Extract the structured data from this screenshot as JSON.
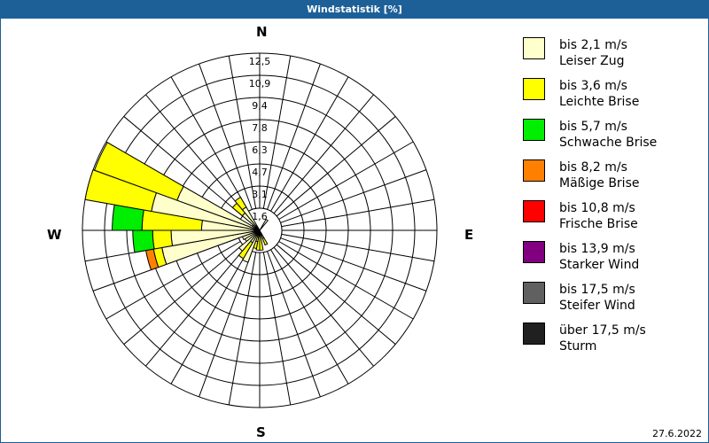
{
  "title": "Windstatistik [%]",
  "date": "27.6.2022",
  "compass": {
    "N": "N",
    "E": "E",
    "S": "S",
    "W": "W"
  },
  "legend": [
    {
      "range": "bis 2,1 m/s",
      "name": "Leiser Zug",
      "color": "#ffffcc"
    },
    {
      "range": "bis 3,6 m/s",
      "name": "Leichte Brise",
      "color": "#ffff00"
    },
    {
      "range": "bis 5,7 m/s",
      "name": "Schwache Brise",
      "color": "#00ee00"
    },
    {
      "range": "bis 8,2 m/s",
      "name": "Mäßige Brise",
      "color": "#ff8000"
    },
    {
      "range": "bis 10,8 m/s",
      "name": "Frische Brise",
      "color": "#ff0000"
    },
    {
      "range": "bis 13,9 m/s",
      "name": "Starker Wind",
      "color": "#800080"
    },
    {
      "range": "bis 17,5 m/s",
      "name": "Steifer Wind",
      "color": "#606060"
    },
    {
      "range": "über 17,5 m/s",
      "name": "Sturm",
      "color": "#202020"
    }
  ],
  "chart_data": {
    "type": "polar-stacked-bar (wind rose)",
    "title": "Windstatistik [%]",
    "rings": [
      "1,6",
      "3,1",
      "4,7",
      "6,3",
      "7,8",
      "9,4",
      "10,9",
      "12,5"
    ],
    "rmax": 12.5,
    "sector_width_deg": 10,
    "series_names": [
      "Leiser Zug",
      "Leichte Brise",
      "Schwache Brise",
      "Mäßige Brise",
      "Frische Brise",
      "Starker Wind",
      "Steifer Wind",
      "Sturm"
    ],
    "sectors": [
      {
        "from": 30,
        "to": 40,
        "values": [
          0.9,
          0,
          0,
          0,
          0,
          0,
          0,
          0
        ]
      },
      {
        "from": 150,
        "to": 160,
        "values": [
          0.6,
          0.5,
          0,
          0,
          0,
          0,
          0,
          0
        ]
      },
      {
        "from": 170,
        "to": 180,
        "values": [
          0.4,
          1.0,
          0,
          0,
          0,
          0,
          0,
          0
        ]
      },
      {
        "from": 180,
        "to": 190,
        "values": [
          0.4,
          1.0,
          0,
          0,
          0,
          0,
          0,
          0
        ]
      },
      {
        "from": 190,
        "to": 200,
        "values": [
          0.8,
          0.5,
          0,
          0,
          0,
          0,
          0,
          0
        ]
      },
      {
        "from": 200,
        "to": 210,
        "values": [
          2.4,
          0,
          0,
          0,
          0,
          0,
          0,
          0
        ]
      },
      {
        "from": 210,
        "to": 220,
        "values": [
          1.0,
          1.3,
          0,
          0,
          0,
          0,
          0,
          0
        ]
      },
      {
        "from": 220,
        "to": 230,
        "values": [
          1.9,
          0,
          0,
          0,
          0,
          0,
          0,
          0
        ]
      },
      {
        "from": 230,
        "to": 240,
        "values": [
          1.2,
          0,
          0,
          0,
          0,
          0,
          0,
          0
        ]
      },
      {
        "from": 240,
        "to": 250,
        "values": [
          1.3,
          0,
          0,
          0,
          0,
          0,
          0,
          0
        ]
      },
      {
        "from": 250,
        "to": 260,
        "values": [
          7.0,
          0.6,
          0,
          0.55,
          0,
          0,
          0,
          0
        ]
      },
      {
        "from": 260,
        "to": 270,
        "values": [
          6.25,
          1.3,
          1.4,
          0,
          0,
          0,
          0,
          0
        ]
      },
      {
        "from": 270,
        "to": 280,
        "values": [
          4.1,
          4.2,
          2.1,
          0,
          0,
          0,
          0,
          0
        ]
      },
      {
        "from": 280,
        "to": 290,
        "values": [
          7.75,
          4.75,
          0,
          0,
          0,
          0,
          0,
          0
        ]
      },
      {
        "from": 290,
        "to": 300,
        "values": [
          6.2,
          6.2,
          0,
          0,
          0,
          0,
          0,
          0
        ]
      },
      {
        "from": 300,
        "to": 310,
        "values": [
          0.6,
          0.0,
          0,
          0,
          0,
          0,
          0,
          0
        ]
      },
      {
        "from": 310,
        "to": 320,
        "values": [
          1.6,
          0.9,
          0,
          0,
          0,
          0,
          0,
          0
        ]
      },
      {
        "from": 320,
        "to": 330,
        "values": [
          1.9,
          0.8,
          0,
          0,
          0,
          0,
          0,
          0
        ]
      }
    ]
  }
}
